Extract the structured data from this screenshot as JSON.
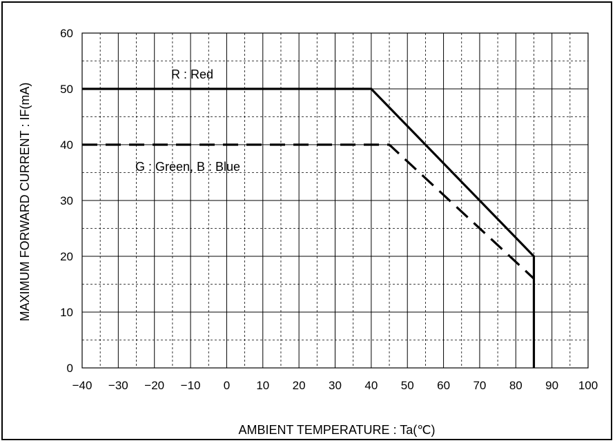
{
  "chart_data": {
    "type": "line",
    "xlabel": "AMBIENT TEMPERATURE : Ta(℃)",
    "ylabel": "MAXIMUM FORWARD CURRENT : IF(mA)",
    "xlim": [
      -40,
      100
    ],
    "ylim": [
      0,
      60
    ],
    "x_ticks": [
      -40,
      -30,
      -20,
      -10,
      0,
      10,
      20,
      30,
      40,
      50,
      60,
      70,
      80,
      90,
      100
    ],
    "x_tick_labels": [
      "−40",
      "−30",
      "−20",
      "−10",
      "0",
      "10",
      "20",
      "30",
      "40",
      "50",
      "60",
      "70",
      "80",
      "90",
      "100"
    ],
    "y_ticks": [
      0,
      10,
      20,
      30,
      40,
      50,
      60
    ],
    "y_tick_labels": [
      "0",
      "10",
      "20",
      "30",
      "40",
      "50",
      "60"
    ],
    "grid": true,
    "series": [
      {
        "name": "R : Red",
        "color": "#000000",
        "style": "solid",
        "points": [
          [
            -40,
            50
          ],
          [
            40,
            50
          ],
          [
            85,
            20
          ],
          [
            85,
            0
          ]
        ]
      },
      {
        "name": "G : Green, B : Blue",
        "color": "#000000",
        "style": "dashed",
        "points": [
          [
            -40,
            40
          ],
          [
            45,
            40
          ],
          [
            85,
            16
          ]
        ]
      }
    ]
  }
}
